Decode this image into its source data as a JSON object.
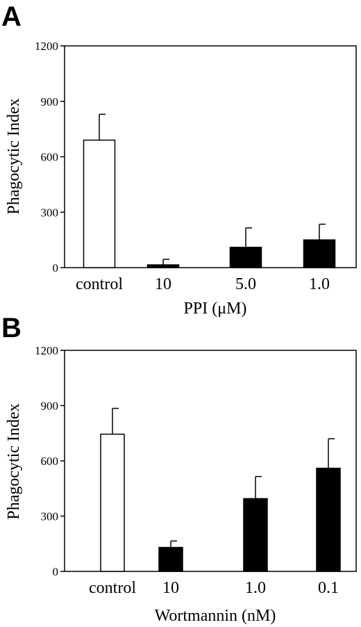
{
  "chart_data": [
    {
      "panel_label": "A",
      "type": "bar",
      "categories": [
        "control",
        "10",
        "5.0",
        "1.0"
      ],
      "values": [
        690,
        15,
        110,
        150
      ],
      "errors": [
        140,
        30,
        105,
        85
      ],
      "bar_colors": [
        "#ffffff",
        "#000000",
        "#000000",
        "#000000"
      ],
      "xlabel": "PPI (μM)",
      "ylabel": "Phagocytic Index",
      "ylim": [
        0,
        1200
      ],
      "yticks": [
        "0",
        "300",
        "600",
        "900",
        "1200"
      ],
      "grid": false
    },
    {
      "panel_label": "B",
      "type": "bar",
      "categories": [
        "control",
        "10",
        "1.0",
        "0.1"
      ],
      "values": [
        745,
        130,
        395,
        560
      ],
      "errors": [
        140,
        35,
        120,
        160
      ],
      "bar_colors": [
        "#ffffff",
        "#000000",
        "#000000",
        "#000000"
      ],
      "xlabel": "Wortmannin (nM)",
      "ylabel": "Phagocytic Index",
      "ylim": [
        0,
        1200
      ],
      "yticks": [
        "0",
        "300",
        "600",
        "900",
        "1200"
      ],
      "grid": false
    }
  ]
}
